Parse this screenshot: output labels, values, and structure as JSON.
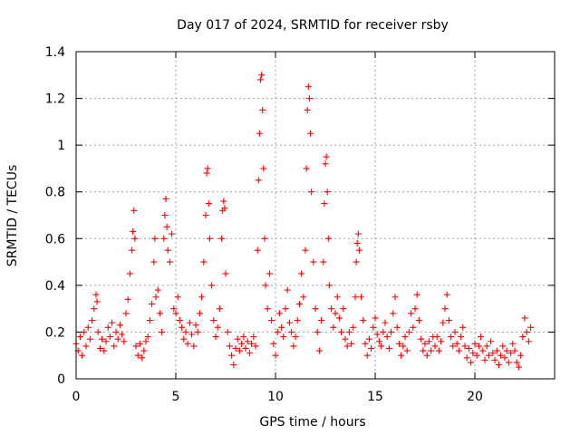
{
  "chart_data": {
    "type": "scatter",
    "title": "Day 017 of 2024, SRMTID for receiver rsby",
    "xlabel": "GPS time / hours",
    "ylabel": "SRMTID / TECUs",
    "xlim": [
      0,
      24
    ],
    "ylim": [
      0,
      1.4
    ],
    "grid": true,
    "marker": "plus",
    "x_ticks": [
      0,
      5,
      10,
      15,
      20
    ],
    "x_tick_labels": [
      "0",
      "5",
      "10",
      "15",
      "20"
    ],
    "y_ticks": [
      0,
      0.2,
      0.4,
      0.6,
      0.8,
      1.0,
      1.2,
      1.4
    ],
    "y_tick_labels": [
      "0",
      "0.2",
      "0.4",
      "0.6",
      "0.8",
      "1",
      "1.2",
      "1.4"
    ],
    "series": [
      {
        "name": "SRMTID",
        "color": "#ff0000",
        "points": [
          [
            0.0,
            0.15
          ],
          [
            0.1,
            0.12
          ],
          [
            0.2,
            0.18
          ],
          [
            0.3,
            0.1
          ],
          [
            0.4,
            0.2
          ],
          [
            0.5,
            0.14
          ],
          [
            0.6,
            0.22
          ],
          [
            0.7,
            0.17
          ],
          [
            0.8,
            0.25
          ],
          [
            0.9,
            0.3
          ],
          [
            1.0,
            0.36
          ],
          [
            1.05,
            0.33
          ],
          [
            1.1,
            0.2
          ],
          [
            1.2,
            0.13
          ],
          [
            1.3,
            0.17
          ],
          [
            1.4,
            0.12
          ],
          [
            1.5,
            0.16
          ],
          [
            1.6,
            0.22
          ],
          [
            1.7,
            0.18
          ],
          [
            1.8,
            0.24
          ],
          [
            1.9,
            0.14
          ],
          [
            2.0,
            0.2
          ],
          [
            2.1,
            0.17
          ],
          [
            2.2,
            0.23
          ],
          [
            2.3,
            0.19
          ],
          [
            2.4,
            0.16
          ],
          [
            2.5,
            0.28
          ],
          [
            2.6,
            0.34
          ],
          [
            2.7,
            0.45
          ],
          [
            2.8,
            0.55
          ],
          [
            2.85,
            0.63
          ],
          [
            2.9,
            0.72
          ],
          [
            2.95,
            0.6
          ],
          [
            3.0,
            0.14
          ],
          [
            3.1,
            0.1
          ],
          [
            3.2,
            0.15
          ],
          [
            3.3,
            0.09
          ],
          [
            3.4,
            0.12
          ],
          [
            3.5,
            0.16
          ],
          [
            3.6,
            0.18
          ],
          [
            3.7,
            0.25
          ],
          [
            3.8,
            0.32
          ],
          [
            3.9,
            0.5
          ],
          [
            3.95,
            0.6
          ],
          [
            4.0,
            0.35
          ],
          [
            4.1,
            0.38
          ],
          [
            4.2,
            0.28
          ],
          [
            4.3,
            0.2
          ],
          [
            4.4,
            0.6
          ],
          [
            4.45,
            0.7
          ],
          [
            4.5,
            0.77
          ],
          [
            4.55,
            0.65
          ],
          [
            4.6,
            0.55
          ],
          [
            4.7,
            0.5
          ],
          [
            4.8,
            0.62
          ],
          [
            4.9,
            0.3
          ],
          [
            5.0,
            0.28
          ],
          [
            5.1,
            0.35
          ],
          [
            5.2,
            0.25
          ],
          [
            5.3,
            0.22
          ],
          [
            5.4,
            0.17
          ],
          [
            5.5,
            0.2
          ],
          [
            5.6,
            0.15
          ],
          [
            5.7,
            0.24
          ],
          [
            5.8,
            0.19
          ],
          [
            5.9,
            0.14
          ],
          [
            6.0,
            0.23
          ],
          [
            6.1,
            0.2
          ],
          [
            6.2,
            0.28
          ],
          [
            6.3,
            0.35
          ],
          [
            6.4,
            0.5
          ],
          [
            6.5,
            0.7
          ],
          [
            6.55,
            0.88
          ],
          [
            6.6,
            0.9
          ],
          [
            6.65,
            0.75
          ],
          [
            6.7,
            0.6
          ],
          [
            6.8,
            0.4
          ],
          [
            6.9,
            0.25
          ],
          [
            7.0,
            0.18
          ],
          [
            7.1,
            0.22
          ],
          [
            7.2,
            0.3
          ],
          [
            7.3,
            0.6
          ],
          [
            7.35,
            0.72
          ],
          [
            7.4,
            0.76
          ],
          [
            7.45,
            0.73
          ],
          [
            7.5,
            0.45
          ],
          [
            7.6,
            0.2
          ],
          [
            7.7,
            0.14
          ],
          [
            7.8,
            0.1
          ],
          [
            7.9,
            0.06
          ],
          [
            8.0,
            0.13
          ],
          [
            8.1,
            0.17
          ],
          [
            8.2,
            0.12
          ],
          [
            8.3,
            0.15
          ],
          [
            8.4,
            0.18
          ],
          [
            8.5,
            0.13
          ],
          [
            8.6,
            0.16
          ],
          [
            8.7,
            0.11
          ],
          [
            8.8,
            0.15
          ],
          [
            8.9,
            0.18
          ],
          [
            9.0,
            0.14
          ],
          [
            9.1,
            0.55
          ],
          [
            9.15,
            0.85
          ],
          [
            9.2,
            1.05
          ],
          [
            9.25,
            1.28
          ],
          [
            9.3,
            1.3
          ],
          [
            9.35,
            1.15
          ],
          [
            9.4,
            0.9
          ],
          [
            9.45,
            0.6
          ],
          [
            9.5,
            0.4
          ],
          [
            9.6,
            0.3
          ],
          [
            9.7,
            0.45
          ],
          [
            9.8,
            0.25
          ],
          [
            9.9,
            0.15
          ],
          [
            10.0,
            0.1
          ],
          [
            10.1,
            0.2
          ],
          [
            10.2,
            0.28
          ],
          [
            10.3,
            0.22
          ],
          [
            10.4,
            0.18
          ],
          [
            10.5,
            0.3
          ],
          [
            10.6,
            0.38
          ],
          [
            10.7,
            0.24
          ],
          [
            10.8,
            0.2
          ],
          [
            10.9,
            0.14
          ],
          [
            11.0,
            0.18
          ],
          [
            11.1,
            0.25
          ],
          [
            11.2,
            0.32
          ],
          [
            11.3,
            0.45
          ],
          [
            11.4,
            0.35
          ],
          [
            11.5,
            0.55
          ],
          [
            11.55,
            0.9
          ],
          [
            11.6,
            1.15
          ],
          [
            11.65,
            1.25
          ],
          [
            11.7,
            1.2
          ],
          [
            11.75,
            1.05
          ],
          [
            11.8,
            0.8
          ],
          [
            11.9,
            0.5
          ],
          [
            12.0,
            0.3
          ],
          [
            12.1,
            0.2
          ],
          [
            12.2,
            0.12
          ],
          [
            12.3,
            0.25
          ],
          [
            12.4,
            0.5
          ],
          [
            12.45,
            0.75
          ],
          [
            12.5,
            0.92
          ],
          [
            12.55,
            0.95
          ],
          [
            12.6,
            0.8
          ],
          [
            12.65,
            0.6
          ],
          [
            12.7,
            0.4
          ],
          [
            12.8,
            0.3
          ],
          [
            12.9,
            0.22
          ],
          [
            13.0,
            0.28
          ],
          [
            13.1,
            0.35
          ],
          [
            13.2,
            0.26
          ],
          [
            13.3,
            0.2
          ],
          [
            13.4,
            0.3
          ],
          [
            13.5,
            0.17
          ],
          [
            13.6,
            0.14
          ],
          [
            13.7,
            0.2
          ],
          [
            13.8,
            0.15
          ],
          [
            13.9,
            0.22
          ],
          [
            14.0,
            0.35
          ],
          [
            14.05,
            0.5
          ],
          [
            14.1,
            0.58
          ],
          [
            14.15,
            0.62
          ],
          [
            14.2,
            0.55
          ],
          [
            14.3,
            0.35
          ],
          [
            14.4,
            0.25
          ],
          [
            14.5,
            0.15
          ],
          [
            14.6,
            0.1
          ],
          [
            14.7,
            0.17
          ],
          [
            14.8,
            0.13
          ],
          [
            14.9,
            0.22
          ],
          [
            15.0,
            0.26
          ],
          [
            15.1,
            0.19
          ],
          [
            15.2,
            0.16
          ],
          [
            15.3,
            0.14
          ],
          [
            15.4,
            0.2
          ],
          [
            15.5,
            0.24
          ],
          [
            15.6,
            0.18
          ],
          [
            15.7,
            0.13
          ],
          [
            15.8,
            0.2
          ],
          [
            15.9,
            0.28
          ],
          [
            16.0,
            0.35
          ],
          [
            16.1,
            0.22
          ],
          [
            16.2,
            0.15
          ],
          [
            16.3,
            0.1
          ],
          [
            16.4,
            0.14
          ],
          [
            16.5,
            0.18
          ],
          [
            16.6,
            0.12
          ],
          [
            16.7,
            0.2
          ],
          [
            16.8,
            0.28
          ],
          [
            16.9,
            0.22
          ],
          [
            17.0,
            0.3
          ],
          [
            17.1,
            0.36
          ],
          [
            17.2,
            0.25
          ],
          [
            17.3,
            0.17
          ],
          [
            17.4,
            0.12
          ],
          [
            17.5,
            0.15
          ],
          [
            17.6,
            0.1
          ],
          [
            17.7,
            0.16
          ],
          [
            17.8,
            0.12
          ],
          [
            17.9,
            0.18
          ],
          [
            18.0,
            0.14
          ],
          [
            18.1,
            0.18
          ],
          [
            18.2,
            0.12
          ],
          [
            18.3,
            0.16
          ],
          [
            18.4,
            0.24
          ],
          [
            18.5,
            0.3
          ],
          [
            18.6,
            0.36
          ],
          [
            18.7,
            0.25
          ],
          [
            18.8,
            0.18
          ],
          [
            18.9,
            0.14
          ],
          [
            19.0,
            0.2
          ],
          [
            19.1,
            0.15
          ],
          [
            19.2,
            0.12
          ],
          [
            19.3,
            0.18
          ],
          [
            19.4,
            0.22
          ],
          [
            19.5,
            0.14
          ],
          [
            19.6,
            0.09
          ],
          [
            19.7,
            0.13
          ],
          [
            19.8,
            0.07
          ],
          [
            19.9,
            0.11
          ],
          [
            20.0,
            0.15
          ],
          [
            20.1,
            0.1
          ],
          [
            20.2,
            0.14
          ],
          [
            20.3,
            0.18
          ],
          [
            20.4,
            0.12
          ],
          [
            20.5,
            0.08
          ],
          [
            20.6,
            0.14
          ],
          [
            20.7,
            0.1
          ],
          [
            20.8,
            0.16
          ],
          [
            20.9,
            0.11
          ],
          [
            21.0,
            0.08
          ],
          [
            21.1,
            0.12
          ],
          [
            21.2,
            0.06
          ],
          [
            21.3,
            0.1
          ],
          [
            21.4,
            0.14
          ],
          [
            21.5,
            0.09
          ],
          [
            21.6,
            0.12
          ],
          [
            21.7,
            0.07
          ],
          [
            21.8,
            0.11
          ],
          [
            21.9,
            0.15
          ],
          [
            22.0,
            0.12
          ],
          [
            22.1,
            0.07
          ],
          [
            22.2,
            0.05
          ],
          [
            22.3,
            0.1
          ],
          [
            22.4,
            0.18
          ],
          [
            22.5,
            0.26
          ],
          [
            22.6,
            0.2
          ],
          [
            22.7,
            0.16
          ],
          [
            22.8,
            0.22
          ]
        ]
      }
    ]
  }
}
